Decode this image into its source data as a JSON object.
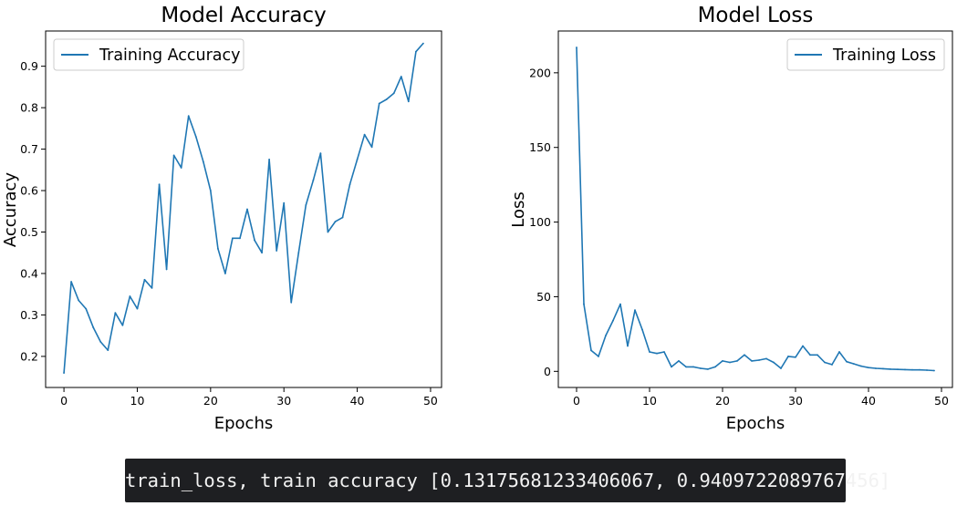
{
  "chart_data": [
    {
      "type": "line",
      "title": "Model Accuracy",
      "xlabel": "Epochs",
      "ylabel": "Accuracy",
      "xlim": [
        -2.5,
        51.5
      ],
      "ylim": [
        0.125,
        0.985
      ],
      "xticks": [
        0,
        10,
        20,
        30,
        40,
        50
      ],
      "yticks": [
        0.2,
        0.3,
        0.4,
        0.5,
        0.6,
        0.7,
        0.8,
        0.9
      ],
      "ytick_labels": [
        "0.2",
        "0.3",
        "0.4",
        "0.5",
        "0.6",
        "0.7",
        "0.8",
        "0.9"
      ],
      "legend_position": "upper-left",
      "color": "#1f77b4",
      "series": [
        {
          "name": "Training Accuracy",
          "x": [
            0,
            1,
            2,
            3,
            4,
            5,
            6,
            7,
            8,
            9,
            10,
            11,
            12,
            13,
            14,
            15,
            16,
            17,
            18,
            19,
            20,
            21,
            22,
            23,
            24,
            25,
            26,
            27,
            28,
            29,
            30,
            31,
            32,
            33,
            34,
            35,
            36,
            37,
            38,
            39,
            40,
            41,
            42,
            43,
            44,
            45,
            46,
            47,
            48,
            49
          ],
          "y": [
            0.16,
            0.38,
            0.335,
            0.315,
            0.27,
            0.235,
            0.215,
            0.305,
            0.275,
            0.345,
            0.315,
            0.385,
            0.365,
            0.615,
            0.41,
            0.685,
            0.655,
            0.78,
            0.73,
            0.67,
            0.6,
            0.46,
            0.4,
            0.485,
            0.485,
            0.555,
            0.48,
            0.45,
            0.675,
            0.455,
            0.57,
            0.33,
            0.45,
            0.565,
            0.625,
            0.69,
            0.5,
            0.525,
            0.535,
            0.615,
            0.675,
            0.735,
            0.705,
            0.81,
            0.82,
            0.835,
            0.875,
            0.815,
            0.935,
            0.955
          ]
        }
      ]
    },
    {
      "type": "line",
      "title": "Model Loss",
      "xlabel": "Epochs",
      "ylabel": "Loss",
      "xlim": [
        -2.5,
        51.5
      ],
      "ylim": [
        -10.8,
        228
      ],
      "xticks": [
        0,
        10,
        20,
        30,
        40,
        50
      ],
      "yticks": [
        0,
        50,
        100,
        150,
        200
      ],
      "ytick_labels": [
        "0",
        "50",
        "100",
        "150",
        "200"
      ],
      "legend_position": "upper-right",
      "color": "#1f77b4",
      "series": [
        {
          "name": "Training Loss",
          "x": [
            0,
            1,
            2,
            3,
            4,
            5,
            6,
            7,
            8,
            9,
            10,
            11,
            12,
            13,
            14,
            15,
            16,
            17,
            18,
            19,
            20,
            21,
            22,
            23,
            24,
            25,
            26,
            27,
            28,
            29,
            30,
            31,
            32,
            33,
            34,
            35,
            36,
            37,
            38,
            39,
            40,
            41,
            42,
            43,
            44,
            45,
            46,
            47,
            48,
            49
          ],
          "y": [
            217,
            45,
            14,
            10,
            24,
            34,
            45,
            17,
            41,
            28,
            13,
            12,
            13,
            3,
            7,
            3,
            3,
            2,
            1.5,
            3,
            7,
            6,
            7,
            11,
            7,
            7.5,
            8.5,
            6,
            2,
            10,
            9.5,
            17,
            11,
            11,
            6,
            4.5,
            13,
            6.5,
            5,
            3.5,
            2.5,
            2,
            1.8,
            1.5,
            1.3,
            1.2,
            1,
            1,
            0.8,
            0.5
          ]
        }
      ]
    }
  ],
  "terminal": {
    "text": "train_loss, train accuracy [0.13175681233406067, 0.9409722089767456]"
  }
}
